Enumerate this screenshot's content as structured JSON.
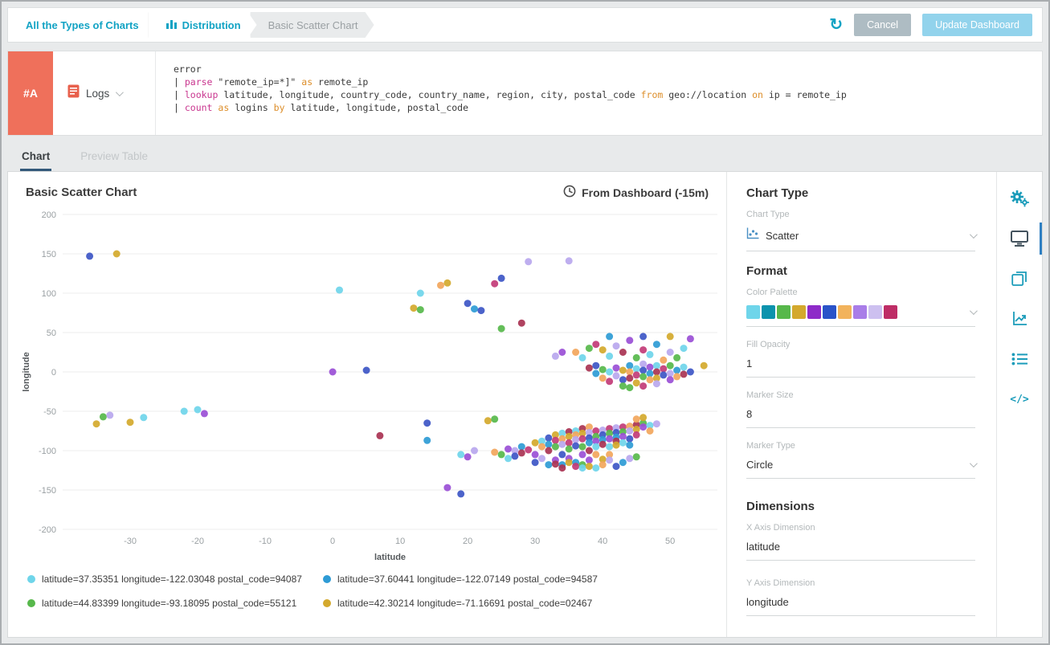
{
  "header": {
    "breadcrumbs": [
      "All the Types of Charts",
      "Distribution",
      "Basic Scatter Chart"
    ],
    "cancel_label": "Cancel",
    "update_label": "Update Dashboard"
  },
  "query_panel": {
    "badge": "#A",
    "source_label": "Logs",
    "lines": [
      [
        {
          "t": "error",
          "c": "plain"
        }
      ],
      [
        {
          "t": "| ",
          "c": "plain"
        },
        {
          "t": "parse",
          "c": "kw"
        },
        {
          "t": " \"remote_ip=*]\" ",
          "c": "plain"
        },
        {
          "t": "as",
          "c": "op"
        },
        {
          "t": " remote_ip",
          "c": "plain"
        }
      ],
      [
        {
          "t": "| ",
          "c": "plain"
        },
        {
          "t": "lookup",
          "c": "kw"
        },
        {
          "t": " latitude, longitude, country_code, country_name, region, city, postal_code ",
          "c": "plain"
        },
        {
          "t": "from",
          "c": "op"
        },
        {
          "t": " geo://location ",
          "c": "plain"
        },
        {
          "t": "on",
          "c": "op"
        },
        {
          "t": " ip = remote_ip",
          "c": "plain"
        }
      ],
      [
        {
          "t": "| ",
          "c": "plain"
        },
        {
          "t": "count",
          "c": "kw"
        },
        {
          "t": " ",
          "c": "plain"
        },
        {
          "t": "as",
          "c": "op"
        },
        {
          "t": " logins ",
          "c": "plain"
        },
        {
          "t": "by",
          "c": "op"
        },
        {
          "t": " latitude, longitude, postal_code",
          "c": "plain"
        }
      ]
    ]
  },
  "tabs": {
    "chart": "Chart",
    "preview": "Preview Table"
  },
  "chart_header": {
    "title": "Basic Scatter Chart",
    "time_range": "From Dashboard (-15m)"
  },
  "chart_data": {
    "type": "scatter",
    "title": "Basic Scatter Chart",
    "xlabel": "latitude",
    "ylabel": "longitude",
    "xlim": [
      -40,
      57
    ],
    "ylim": [
      -200,
      200
    ],
    "xticks": [
      -30,
      -20,
      -10,
      0,
      10,
      20,
      30,
      40,
      50
    ],
    "yticks": [
      -200,
      -150,
      -100,
      -50,
      0,
      50,
      100,
      150,
      200
    ],
    "grid": "horizontal",
    "marker_size": 8,
    "fill_opacity": 1,
    "palette": [
      "#6FD5EA",
      "#2E9BD5",
      "#57B84B",
      "#D4A92D",
      "#9A4FD6",
      "#3D56C6",
      "#F2A65C",
      "#C23B77",
      "#B9A7EE",
      "#A93352"
    ],
    "legend": [
      {
        "color": "#6FD5EA",
        "label": "latitude=37.35351 longitude=-122.03048 postal_code=94087"
      },
      {
        "color": "#2E9BD5",
        "label": "latitude=37.60441 longitude=-122.07149 postal_code=94587"
      },
      {
        "color": "#57B84B",
        "label": "latitude=44.83399 longitude=-93.18095 postal_code=55121"
      },
      {
        "color": "#D4A92D",
        "label": "latitude=42.30214 longitude=-71.16691 postal_code=02467"
      }
    ],
    "points": [
      [
        -36,
        147,
        5
      ],
      [
        -32,
        150,
        3
      ],
      [
        -34,
        -57,
        2
      ],
      [
        -33,
        -55,
        8
      ],
      [
        -35,
        -66,
        3
      ],
      [
        -30,
        -64,
        3
      ],
      [
        -28,
        -58,
        0
      ],
      [
        -22,
        -50,
        0
      ],
      [
        -20,
        -48,
        0
      ],
      [
        -19,
        -53,
        4
      ],
      [
        0,
        0,
        4
      ],
      [
        5,
        2,
        5
      ],
      [
        1,
        104,
        0
      ],
      [
        12,
        81,
        3
      ],
      [
        13,
        79,
        2
      ],
      [
        13,
        100,
        0
      ],
      [
        16,
        110,
        6
      ],
      [
        17,
        113,
        3
      ],
      [
        20,
        87,
        5
      ],
      [
        21,
        80,
        1
      ],
      [
        22,
        78,
        5
      ],
      [
        24,
        112,
        7
      ],
      [
        25,
        119,
        5
      ],
      [
        25,
        55,
        2
      ],
      [
        28,
        62,
        9
      ],
      [
        29,
        140,
        8
      ],
      [
        35,
        141,
        8
      ],
      [
        33,
        20,
        8
      ],
      [
        34,
        25,
        4
      ],
      [
        36,
        25,
        6
      ],
      [
        37,
        18,
        0
      ],
      [
        38,
        30,
        2
      ],
      [
        39,
        35,
        7
      ],
      [
        40,
        28,
        3
      ],
      [
        41,
        45,
        1
      ],
      [
        41,
        20,
        0
      ],
      [
        42,
        33,
        8
      ],
      [
        43,
        25,
        9
      ],
      [
        44,
        40,
        4
      ],
      [
        45,
        18,
        2
      ],
      [
        46,
        45,
        5
      ],
      [
        46,
        28,
        7
      ],
      [
        47,
        22,
        0
      ],
      [
        48,
        35,
        1
      ],
      [
        49,
        15,
        6
      ],
      [
        50,
        45,
        3
      ],
      [
        50,
        25,
        8
      ],
      [
        51,
        18,
        2
      ],
      [
        52,
        30,
        0
      ],
      [
        53,
        42,
        4
      ],
      [
        55,
        8,
        3
      ],
      [
        38,
        5,
        9
      ],
      [
        39,
        -2,
        1
      ],
      [
        39,
        8,
        5
      ],
      [
        40,
        3,
        2
      ],
      [
        40,
        -8,
        6
      ],
      [
        41,
        0,
        0
      ],
      [
        41,
        -12,
        7
      ],
      [
        42,
        5,
        4
      ],
      [
        42,
        -5,
        8
      ],
      [
        43,
        2,
        3
      ],
      [
        43,
        -10,
        5
      ],
      [
        43,
        -18,
        2
      ],
      [
        44,
        8,
        1
      ],
      [
        44,
        0,
        6
      ],
      [
        44,
        -8,
        9
      ],
      [
        45,
        4,
        0
      ],
      [
        45,
        -4,
        7
      ],
      [
        45,
        -14,
        3
      ],
      [
        46,
        10,
        8
      ],
      [
        46,
        2,
        5
      ],
      [
        46,
        -6,
        2
      ],
      [
        47,
        6,
        4
      ],
      [
        47,
        -2,
        1
      ],
      [
        47,
        -10,
        6
      ],
      [
        48,
        8,
        0
      ],
      [
        48,
        0,
        9
      ],
      [
        48,
        -8,
        3
      ],
      [
        49,
        4,
        7
      ],
      [
        49,
        -4,
        5
      ],
      [
        50,
        8,
        2
      ],
      [
        50,
        -2,
        8
      ],
      [
        50,
        -10,
        4
      ],
      [
        51,
        2,
        1
      ],
      [
        51,
        -6,
        6
      ],
      [
        52,
        6,
        0
      ],
      [
        52,
        -3,
        9
      ],
      [
        53,
        0,
        5
      ],
      [
        46,
        -18,
        7
      ],
      [
        48,
        -15,
        8
      ],
      [
        44,
        -20,
        2
      ],
      [
        7,
        -81,
        9
      ],
      [
        14,
        -65,
        5
      ],
      [
        14,
        -87,
        1
      ],
      [
        17,
        -147,
        4
      ],
      [
        19,
        -155,
        5
      ],
      [
        23,
        -62,
        3
      ],
      [
        24,
        -60,
        2
      ],
      [
        19,
        -105,
        0
      ],
      [
        20,
        -108,
        4
      ],
      [
        21,
        -100,
        8
      ],
      [
        30,
        -90,
        3
      ],
      [
        31,
        -88,
        0
      ],
      [
        31,
        -95,
        6
      ],
      [
        32,
        -84,
        5
      ],
      [
        32,
        -92,
        1
      ],
      [
        33,
        -80,
        3
      ],
      [
        33,
        -87,
        7
      ],
      [
        33,
        -95,
        2
      ],
      [
        34,
        -78,
        0
      ],
      [
        34,
        -85,
        6
      ],
      [
        34,
        -92,
        8
      ],
      [
        35,
        -76,
        9
      ],
      [
        35,
        -82,
        3
      ],
      [
        35,
        -90,
        7
      ],
      [
        35,
        -98,
        2
      ],
      [
        36,
        -75,
        0
      ],
      [
        36,
        -80,
        6
      ],
      [
        36,
        -86,
        8
      ],
      [
        36,
        -94,
        5
      ],
      [
        37,
        -72,
        9
      ],
      [
        37,
        -78,
        3
      ],
      [
        37,
        -85,
        7
      ],
      [
        37,
        -95,
        2
      ],
      [
        38,
        -70,
        6
      ],
      [
        38,
        -77,
        8
      ],
      [
        38,
        -84,
        5
      ],
      [
        38,
        -90,
        1
      ],
      [
        39,
        -75,
        7
      ],
      [
        39,
        -82,
        2
      ],
      [
        39,
        -88,
        4
      ],
      [
        39,
        -95,
        0
      ],
      [
        40,
        -74,
        8
      ],
      [
        40,
        -80,
        5
      ],
      [
        40,
        -86,
        1
      ],
      [
        40,
        -92,
        9
      ],
      [
        41,
        -72,
        7
      ],
      [
        41,
        -78,
        2
      ],
      [
        41,
        -85,
        4
      ],
      [
        41,
        -95,
        0
      ],
      [
        42,
        -71,
        8
      ],
      [
        42,
        -77,
        5
      ],
      [
        42,
        -83,
        1
      ],
      [
        42,
        -88,
        9
      ],
      [
        43,
        -70,
        7
      ],
      [
        43,
        -76,
        2
      ],
      [
        43,
        -82,
        4
      ],
      [
        43,
        -90,
        0
      ],
      [
        44,
        -69,
        6
      ],
      [
        44,
        -75,
        8
      ],
      [
        44,
        -85,
        5
      ],
      [
        44,
        -93,
        1
      ],
      [
        45,
        -67,
        9
      ],
      [
        45,
        -73,
        3
      ],
      [
        45,
        -80,
        7
      ],
      [
        46,
        -65,
        2
      ],
      [
        46,
        -70,
        4
      ],
      [
        47,
        -68,
        0
      ],
      [
        47,
        -75,
        6
      ],
      [
        48,
        -66,
        8
      ],
      [
        45,
        -60,
        6
      ],
      [
        46,
        -58,
        3
      ],
      [
        24,
        -102,
        6
      ],
      [
        25,
        -105,
        2
      ],
      [
        26,
        -98,
        4
      ],
      [
        26,
        -110,
        0
      ],
      [
        27,
        -100,
        8
      ],
      [
        27,
        -107,
        5
      ],
      [
        28,
        -95,
        1
      ],
      [
        28,
        -103,
        9
      ],
      [
        29,
        -99,
        7
      ],
      [
        30,
        -105,
        4
      ],
      [
        30,
        -115,
        5
      ],
      [
        31,
        -110,
        8
      ],
      [
        32,
        -100,
        9
      ],
      [
        32,
        -118,
        1
      ],
      [
        33,
        -112,
        4
      ],
      [
        33,
        -117,
        9
      ],
      [
        34,
        -105,
        5
      ],
      [
        34,
        -118,
        1
      ],
      [
        34,
        -122,
        9
      ],
      [
        35,
        -110,
        4
      ],
      [
        35,
        -115,
        3
      ],
      [
        36,
        -115,
        1
      ],
      [
        36,
        -120,
        7
      ],
      [
        37,
        -105,
        4
      ],
      [
        37,
        -118,
        2
      ],
      [
        37,
        -122,
        0
      ],
      [
        38,
        -100,
        9
      ],
      [
        38,
        -112,
        4
      ],
      [
        38,
        -120,
        3
      ],
      [
        39,
        -105,
        6
      ],
      [
        39,
        -122,
        0
      ],
      [
        40,
        -111,
        3
      ],
      [
        40,
        -118,
        6
      ],
      [
        41,
        -105,
        6
      ],
      [
        41,
        -112,
        8
      ],
      [
        42,
        -120,
        5
      ],
      [
        42,
        -93,
        3
      ],
      [
        43,
        -115,
        1
      ],
      [
        44,
        -110,
        8
      ],
      [
        45,
        -108,
        2
      ]
    ]
  },
  "settings": {
    "chart_type_heading": "Chart Type",
    "chart_type_label": "Chart Type",
    "chart_type_value": "Scatter",
    "format_heading": "Format",
    "color_palette_label": "Color Palette",
    "palette_swatches": [
      "#6FD5EA",
      "#0B93AD",
      "#57B84B",
      "#D4A92D",
      "#8E2BC8",
      "#2A53C8",
      "#F2B35C",
      "#A97DE8",
      "#CDC0F0",
      "#BE2D66"
    ],
    "fill_opacity_label": "Fill Opacity",
    "fill_opacity_value": "1",
    "marker_size_label": "Marker Size",
    "marker_size_value": "8",
    "marker_type_label": "Marker Type",
    "marker_type_value": "Circle",
    "dimensions_heading": "Dimensions",
    "x_axis_label": "X Axis Dimension",
    "x_axis_value": "latitude",
    "y_axis_label": "Y Axis Dimension",
    "y_axis_value": "longitude"
  }
}
